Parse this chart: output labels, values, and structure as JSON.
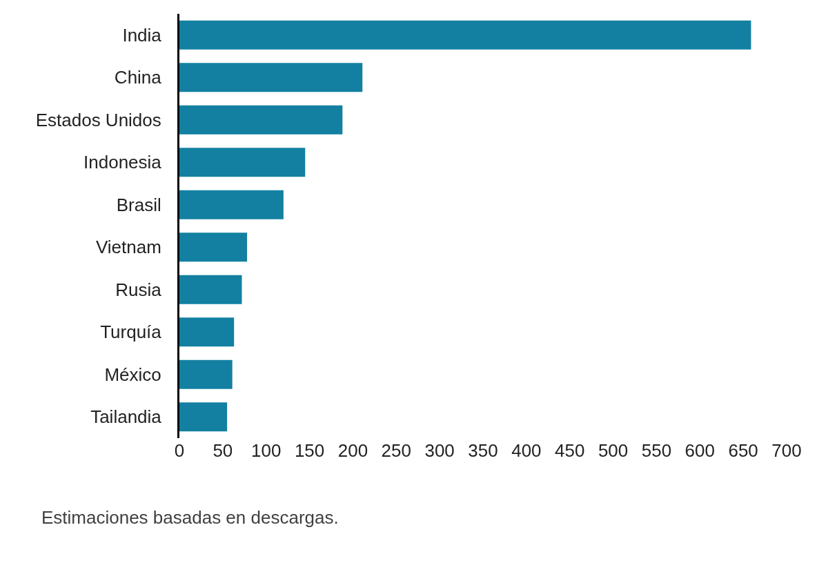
{
  "chart_data": {
    "type": "bar",
    "orientation": "horizontal",
    "categories": [
      "India",
      "China",
      "Estados Unidos",
      "Indonesia",
      "Brasil",
      "Vietnam",
      "Rusia",
      "Turquía",
      "México",
      "Tailandia"
    ],
    "values": [
      659,
      211,
      188,
      145,
      120,
      78,
      72,
      63,
      61,
      55
    ],
    "color": "#1380a1",
    "xlim": [
      0,
      700
    ],
    "xticks": [
      0,
      50,
      100,
      150,
      200,
      250,
      300,
      350,
      400,
      450,
      500,
      550,
      600,
      650,
      700
    ],
    "legend": false,
    "annotations": [
      "Estimaciones basadas en descargas."
    ]
  }
}
